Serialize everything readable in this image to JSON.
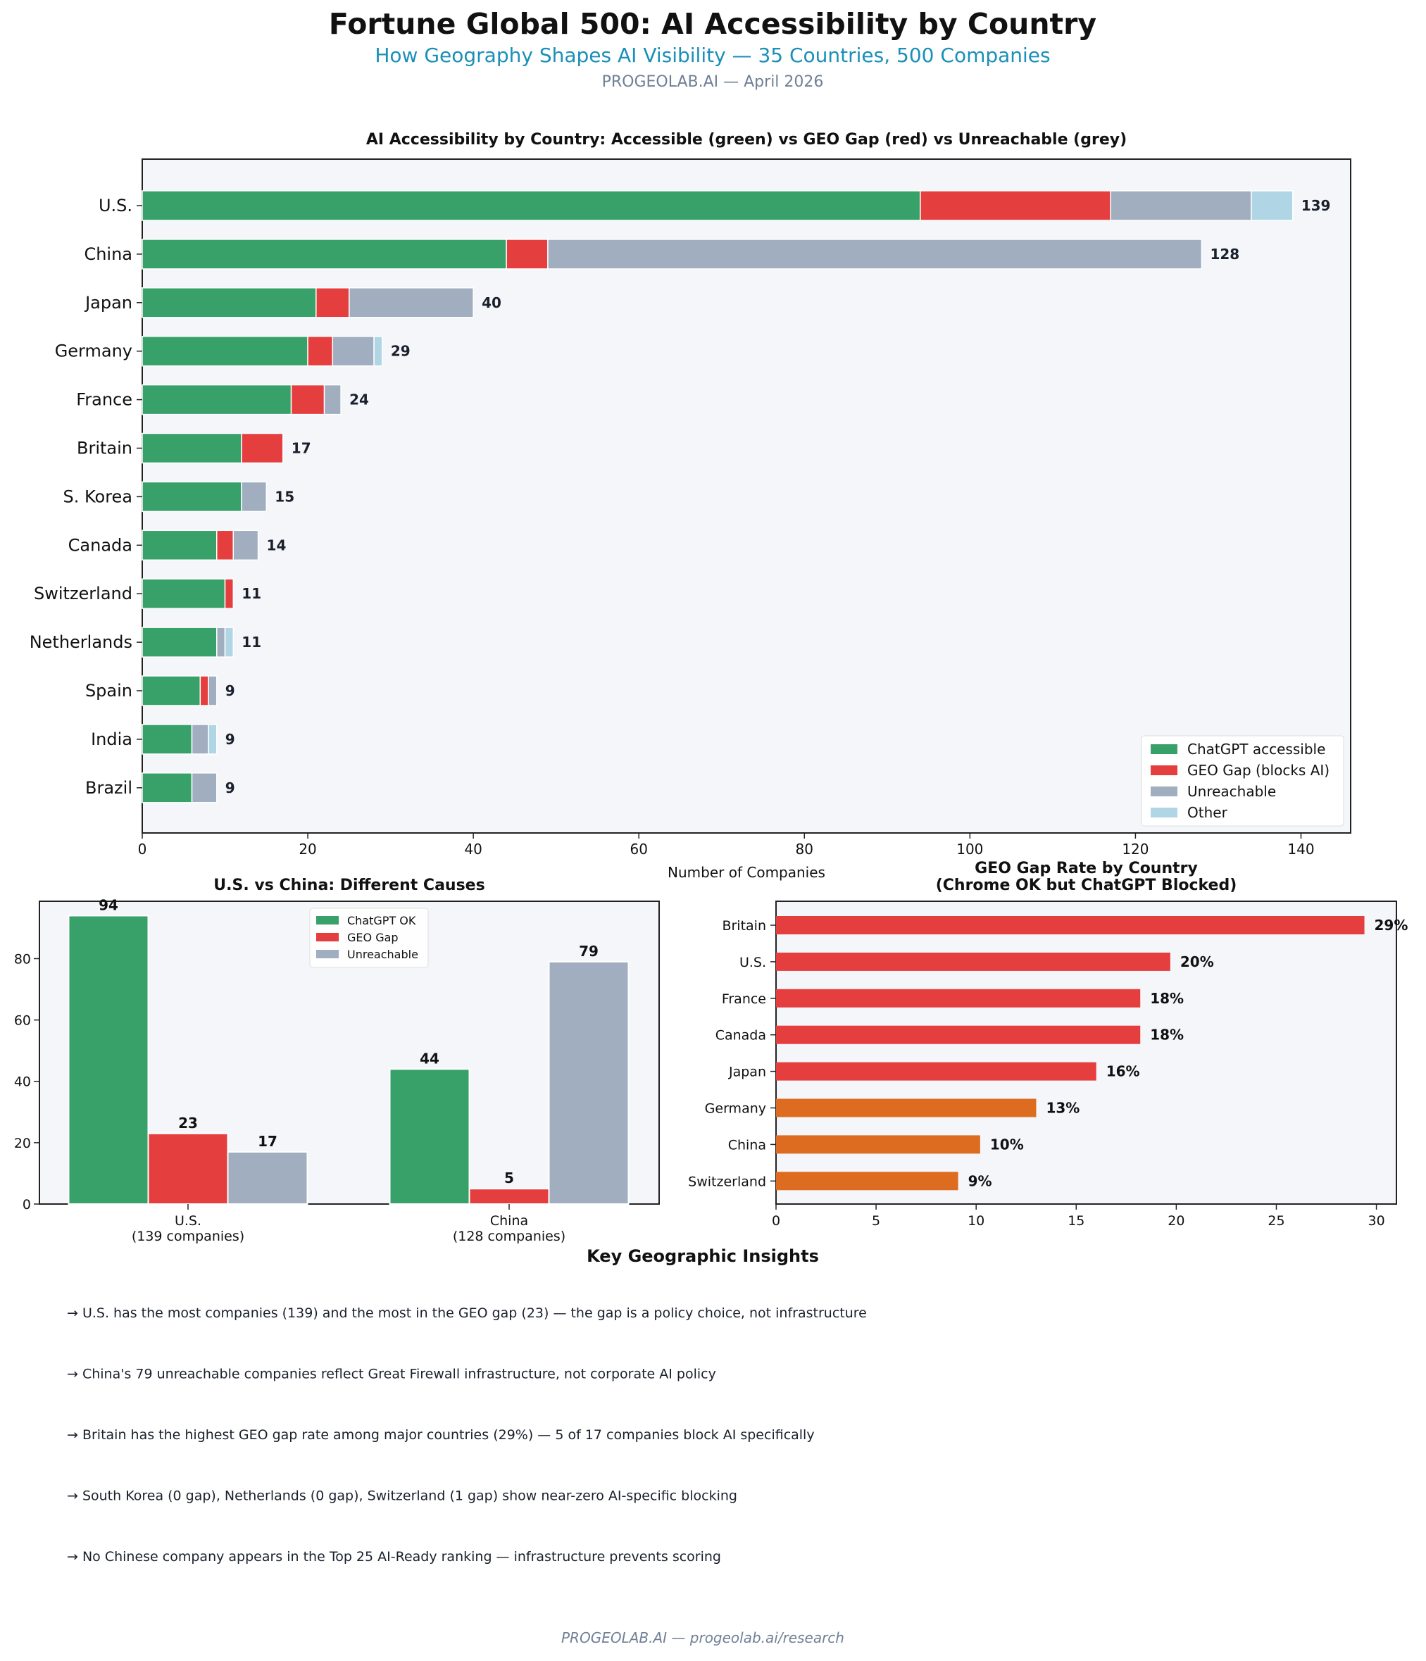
{
  "header": {
    "title": "Fortune Global 500: AI Accessibility by Country",
    "subtitle": "How Geography Shapes AI Visibility — 35 Countries, 500 Companies",
    "byline": "PROGEOLAB.AI — April 2026"
  },
  "colors": {
    "accessible": "#38a169",
    "geo_gap": "#e53e3e",
    "unreachable": "#a0aec0",
    "other": "#b0d6e6",
    "gap_rate_low": "#dd6b20",
    "subtitle": "#1a8fb8",
    "muted": "#718096",
    "axes_bg": "#f4f6fa"
  },
  "chart_data": [
    {
      "type": "bar",
      "orientation": "horizontal",
      "stacked": true,
      "title": "AI Accessibility by Country: Accessible (green) vs GEO Gap (red) vs Unreachable (grey)",
      "xlabel": "Number of Companies",
      "ylabel": "",
      "xlim": [
        0,
        146
      ],
      "xticks": [
        0,
        20,
        40,
        60,
        80,
        100,
        120,
        140
      ],
      "legend_position": "lower-right",
      "grid": false,
      "categories": [
        "U.S.",
        "China",
        "Japan",
        "Germany",
        "France",
        "Britain",
        "S. Korea",
        "Canada",
        "Switzerland",
        "Netherlands",
        "Spain",
        "India",
        "Brazil"
      ],
      "series": [
        {
          "name": "ChatGPT accessible",
          "color_key": "accessible",
          "values": [
            94,
            44,
            21,
            20,
            18,
            12,
            12,
            9,
            10,
            9,
            7,
            6,
            6
          ]
        },
        {
          "name": "GEO Gap (blocks AI)",
          "color_key": "geo_gap",
          "values": [
            23,
            5,
            4,
            3,
            4,
            5,
            0,
            2,
            1,
            0,
            1,
            0,
            0
          ]
        },
        {
          "name": "Unreachable",
          "color_key": "unreachable",
          "values": [
            17,
            79,
            15,
            5,
            2,
            0,
            3,
            3,
            0,
            1,
            1,
            2,
            3
          ]
        },
        {
          "name": "Other",
          "color_key": "other",
          "values": [
            5,
            0,
            0,
            1,
            0,
            0,
            0,
            0,
            0,
            1,
            0,
            1,
            0
          ]
        }
      ],
      "totals": [
        "139",
        "128",
        "40",
        "29",
        "24",
        "17",
        "15",
        "14",
        "11",
        "11",
        "9",
        "9",
        "9"
      ]
    },
    {
      "type": "bar",
      "orientation": "vertical",
      "grouped": true,
      "title": "U.S. vs China: Different Causes",
      "xlabel": "",
      "ylabel": "",
      "ylim": [
        0,
        98.7
      ],
      "yticks": [
        0,
        20,
        40,
        60,
        80
      ],
      "legend_position": "upper-right",
      "grid": false,
      "categories": [
        "U.S.\n(139 companies)",
        "China\n(128 companies)"
      ],
      "series": [
        {
          "name": "ChatGPT OK",
          "color_key": "accessible",
          "values": [
            94,
            44
          ]
        },
        {
          "name": "GEO Gap",
          "color_key": "geo_gap",
          "values": [
            23,
            5
          ]
        },
        {
          "name": "Unreachable",
          "color_key": "unreachable",
          "values": [
            17,
            79
          ]
        }
      ]
    },
    {
      "type": "bar",
      "orientation": "horizontal",
      "title": "GEO Gap Rate by Country\n(Chrome OK but ChatGPT Blocked)",
      "xlabel": "",
      "ylabel": "",
      "xlim": [
        0,
        31
      ],
      "xticks": [
        0,
        5,
        10,
        15,
        20,
        25,
        30
      ],
      "grid": false,
      "categories": [
        "Britain",
        "U.S.",
        "France",
        "Canada",
        "Japan",
        "Germany",
        "China",
        "Switzerland"
      ],
      "values": [
        29.4,
        19.7,
        18.2,
        18.2,
        16.0,
        13.0,
        10.2,
        9.1
      ],
      "labels": [
        "29%",
        "20%",
        "18%",
        "18%",
        "16%",
        "13%",
        "10%",
        "9%"
      ],
      "color_keys": [
        "geo_gap",
        "geo_gap",
        "geo_gap",
        "geo_gap",
        "geo_gap",
        "gap_rate_low",
        "gap_rate_low",
        "gap_rate_low"
      ]
    }
  ],
  "insights": {
    "title": "Key Geographic Insights",
    "items": [
      "→  U.S. has the most companies (139) and the most in the GEO gap (23) — the gap is a policy choice, not infrastructure",
      "→  China's 79 unreachable companies reflect Great Firewall infrastructure, not corporate AI policy",
      "→  Britain has the highest GEO gap rate among major countries (29%) — 5 of 17 companies block AI specifically",
      "→  South Korea (0 gap), Netherlands (0 gap), Switzerland (1 gap) show near-zero AI-specific blocking",
      "→  No Chinese company appears in the Top 25 AI-Ready ranking — infrastructure prevents scoring"
    ]
  },
  "footer": "PROGEOLAB.AI — progeolab.ai/research"
}
